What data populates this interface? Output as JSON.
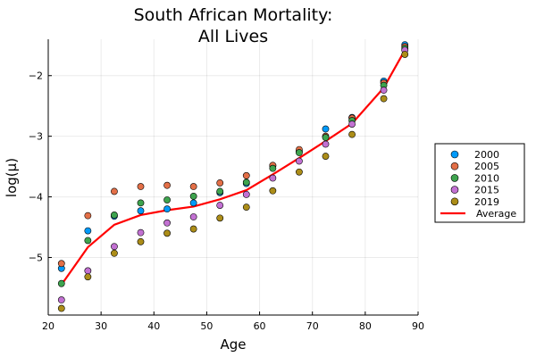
{
  "chart_data": {
    "type": "scatter",
    "title_line1": "South African Mortality:",
    "title_line2": "All Lives",
    "xlabel": "Age",
    "ylabel": "log(μ)",
    "xlim": [
      20,
      90
    ],
    "ylim": [
      -5.95,
      -1.4
    ],
    "xticks": [
      20,
      30,
      40,
      50,
      60,
      70,
      80,
      90
    ],
    "yticks": [
      -5,
      -4,
      -3,
      -2
    ],
    "ytick_labels": [
      "−5",
      "−4",
      "−3",
      "−2"
    ],
    "grid": true,
    "legend_placement": "right",
    "x": [
      22.5,
      27.5,
      32.5,
      37.5,
      42.5,
      47.5,
      52.5,
      57.5,
      62.5,
      67.5,
      72.5,
      77.5,
      83.5,
      87.5
    ],
    "series": [
      {
        "name": "2000",
        "color": "#009AFA",
        "kind": "points",
        "values": [
          -5.18,
          -4.56,
          -4.32,
          -4.23,
          -4.2,
          -4.1,
          -3.93,
          -3.78,
          -3.49,
          -3.25,
          -2.88,
          -2.69,
          -2.09,
          -1.49
        ]
      },
      {
        "name": "2005",
        "color": "#E36F47",
        "kind": "points",
        "values": [
          -5.1,
          -4.31,
          -3.91,
          -3.83,
          -3.81,
          -3.83,
          -3.77,
          -3.65,
          -3.48,
          -3.22,
          -3.0,
          -2.7,
          -2.12,
          -1.52
        ]
      },
      {
        "name": "2010",
        "color": "#3EA44E",
        "kind": "points",
        "values": [
          -5.43,
          -4.72,
          -4.3,
          -4.1,
          -4.05,
          -3.99,
          -3.91,
          -3.76,
          -3.53,
          -3.27,
          -3.02,
          -2.74,
          -2.16,
          -1.55
        ]
      },
      {
        "name": "2015",
        "color": "#C271D2",
        "kind": "points",
        "values": [
          -5.7,
          -5.22,
          -4.82,
          -4.59,
          -4.43,
          -4.33,
          -4.14,
          -3.96,
          -3.69,
          -3.41,
          -3.13,
          -2.8,
          -2.24,
          -1.58
        ]
      },
      {
        "name": "2019",
        "color": "#AC8D18",
        "kind": "points",
        "values": [
          -5.84,
          -5.32,
          -4.93,
          -4.74,
          -4.6,
          -4.53,
          -4.35,
          -4.17,
          -3.9,
          -3.59,
          -3.33,
          -2.97,
          -2.38,
          -1.65
        ]
      },
      {
        "name": "Average",
        "color": "#FF0000",
        "kind": "line",
        "values": [
          -5.45,
          -4.83,
          -4.46,
          -4.3,
          -4.22,
          -4.16,
          -4.04,
          -3.89,
          -3.63,
          -3.36,
          -3.08,
          -2.79,
          -2.2,
          -1.58
        ]
      }
    ]
  }
}
